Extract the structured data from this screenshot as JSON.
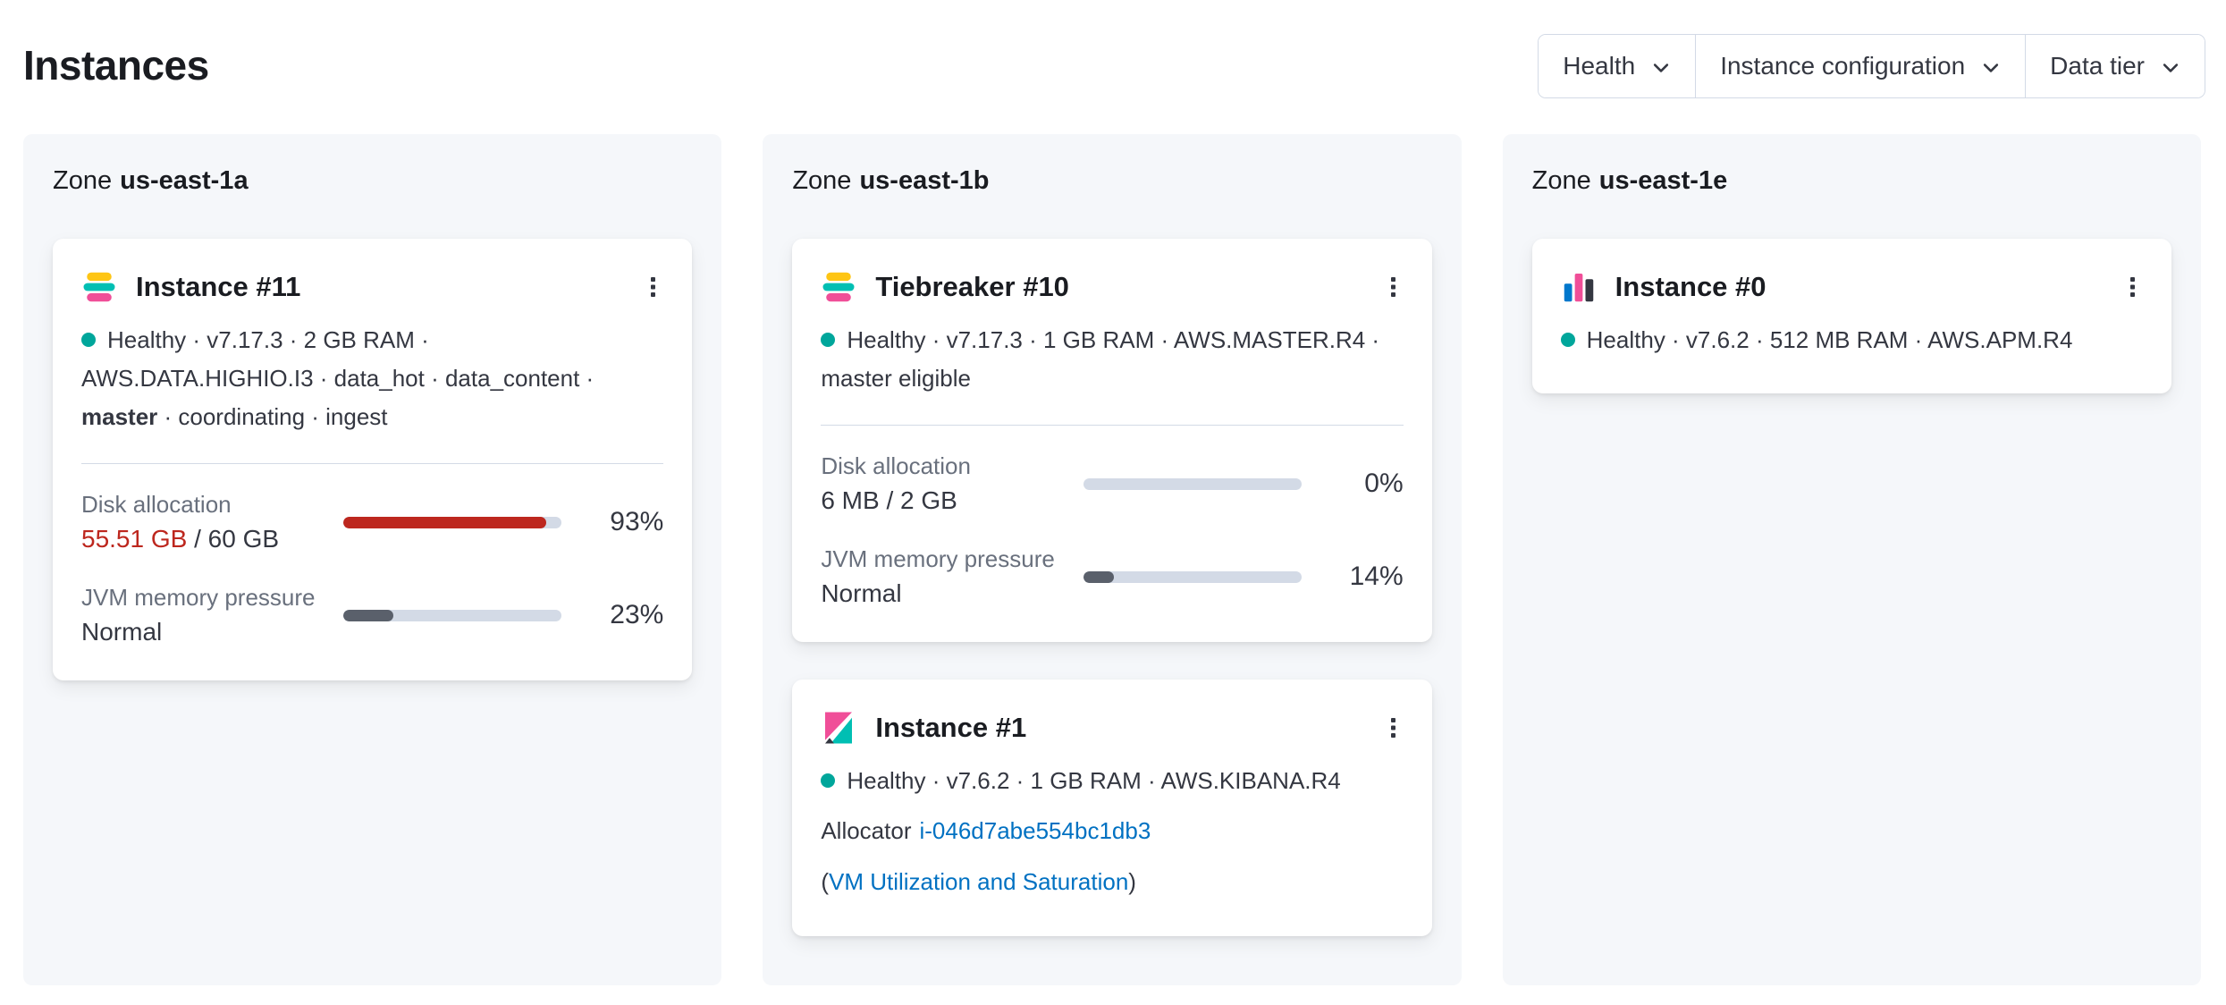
{
  "page": {
    "title": "Instances"
  },
  "filters": {
    "items": [
      {
        "label": "Health"
      },
      {
        "label": "Instance configuration"
      },
      {
        "label": "Data tier"
      }
    ]
  },
  "colors": {
    "healthy_dot": "#00A69B",
    "danger": "#BD271E",
    "link": "#0071C2",
    "bar_track": "#D3DAE6",
    "bar_fill_neutral": "#5A606B",
    "zone_panel_bg": "#F5F7FA"
  },
  "zones": [
    {
      "label_prefix": "Zone",
      "name": "us-east-1a",
      "cards": [
        {
          "icon": "elasticsearch-logo",
          "title": "Instance #11",
          "health": "Healthy",
          "meta_mid": " · v7.17.3 · 2 GB RAM · AWS.DATA.HIGHIO.I3 · data_hot · data_content · ",
          "meta_bold": "master",
          "meta_end": " · coordinating · ingest",
          "stats": [
            {
              "label": "Disk allocation",
              "value_highlight": "55.51 GB",
              "value_rest": " / 60 GB",
              "percent_label": "93%",
              "bar": {
                "percent": 93,
                "color": "#BD271E"
              }
            },
            {
              "label": "JVM memory pressure",
              "value": "Normal",
              "percent_label": "23%",
              "bar": {
                "percent": 23,
                "color": "#5A606B"
              }
            }
          ]
        }
      ]
    },
    {
      "label_prefix": "Zone",
      "name": "us-east-1b",
      "cards": [
        {
          "icon": "elasticsearch-logo",
          "title": "Tiebreaker #10",
          "health": "Healthy",
          "meta_mid": " · v7.17.3 · 1 GB RAM · AWS.MASTER.R4 · master eligible",
          "stats": [
            {
              "label": "Disk allocation",
              "value": "6 MB / 2 GB",
              "percent_label": "0%",
              "bar": {
                "percent": 0,
                "color": "#5A606B"
              }
            },
            {
              "label": "JVM memory pressure",
              "value": "Normal",
              "percent_label": "14%",
              "bar": {
                "percent": 14,
                "color": "#5A606B"
              }
            }
          ]
        },
        {
          "icon": "kibana-logo",
          "title": "Instance #1",
          "health": "Healthy",
          "meta_mid": " · v7.6.2 · 1 GB RAM · AWS.KIBANA.R4",
          "allocator_label": "Allocator",
          "allocator_link": "i-046d7abe554bc1db3",
          "vm_open_paren": "(",
          "vm_link": "VM Utilization and Saturation",
          "vm_close_paren": ")"
        }
      ]
    },
    {
      "label_prefix": "Zone",
      "name": "us-east-1e",
      "cards": [
        {
          "icon": "apm-logo",
          "title": "Instance #0",
          "health": "Healthy",
          "meta_mid": " · v7.6.2 · 512 MB RAM · AWS.APM.R4"
        }
      ]
    }
  ]
}
